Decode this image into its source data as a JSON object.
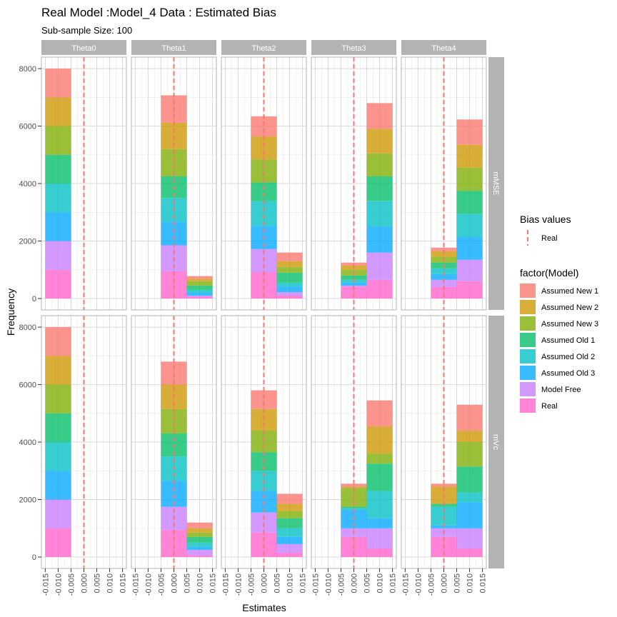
{
  "chart_data": {
    "type": "bar",
    "title": "Real Model :Model_4 Data : Estimated Bias",
    "subtitle": "Sub-sample Size: 100",
    "xlabel": "Estimates",
    "ylabel": "Frequency",
    "x_ticks": [
      "-0.015",
      "-0.010",
      "-0.005",
      "0.000",
      "0.005",
      "0.010",
      "0.015"
    ],
    "y_ticks": [
      "0",
      "2000",
      "4000",
      "6000",
      "8000"
    ],
    "ylim": [
      0,
      8400
    ],
    "grid": true,
    "stacked": true,
    "facet_columns": [
      "Theta0",
      "Theta1",
      "Theta2",
      "Theta3",
      "Theta4"
    ],
    "facet_rows": [
      "mMSE",
      "mVc"
    ],
    "reference_line": {
      "label": "Real",
      "value": 0.0,
      "color": "#f8766d"
    },
    "legend_bias": {
      "title": "Bias values",
      "entry": "Real"
    },
    "legend_model": {
      "title": "factor(Model)",
      "entries": [
        "Assumed New 1",
        "Assumed New 2",
        "Assumed New 3",
        "Assumed Old 1",
        "Assumed Old 2",
        "Assumed Old 3",
        "Model Free",
        "Real"
      ]
    },
    "colors": [
      "#f8766d",
      "#cd9600",
      "#7cae00",
      "#00be67",
      "#00bfc4",
      "#00a9ff",
      "#c77cff",
      "#ff61cc"
    ],
    "panels": [
      {
        "row": "mMSE",
        "col": "Theta0",
        "bars": [
          {
            "x0": -0.015,
            "x1": -0.005,
            "stack": [
              1000,
              1000,
              1000,
              1000,
              1000,
              1000,
              1000,
              1000
            ]
          }
        ]
      },
      {
        "row": "mMSE",
        "col": "Theta1",
        "bars": [
          {
            "x0": -0.005,
            "x1": 0.005,
            "stack": [
              950,
              920,
              950,
              750,
              830,
              820,
              900,
              950
            ]
          },
          {
            "x0": 0.005,
            "x1": 0.015,
            "stack": [
              100,
              80,
              150,
              150,
              100,
              100,
              50,
              50
            ]
          }
        ]
      },
      {
        "row": "mMSE",
        "col": "Theta2",
        "bars": [
          {
            "x0": -0.005,
            "x1": 0.005,
            "stack": [
              700,
              800,
              800,
              650,
              870,
              800,
              800,
              920
            ]
          },
          {
            "x0": 0.005,
            "x1": 0.015,
            "stack": [
              300,
              200,
              200,
              350,
              130,
              200,
              120,
              100
            ]
          }
        ]
      },
      {
        "row": "mMSE",
        "col": "Theta3",
        "bars": [
          {
            "x0": -0.005,
            "x1": 0.005,
            "stack": [
              100,
              150,
              200,
              150,
              100,
              100,
              50,
              400
            ]
          },
          {
            "x0": 0.005,
            "x1": 0.015,
            "stack": [
              900,
              850,
              800,
              850,
              900,
              900,
              950,
              650
            ]
          }
        ]
      },
      {
        "row": "mMSE",
        "col": "Theta4",
        "bars": [
          {
            "x0": -0.005,
            "x1": 0.005,
            "stack": [
              120,
              200,
              200,
              200,
              200,
              200,
              250,
              400
            ]
          },
          {
            "x0": 0.005,
            "x1": 0.015,
            "stack": [
              880,
              800,
              800,
              800,
              800,
              800,
              750,
              600
            ]
          }
        ]
      },
      {
        "row": "mVc",
        "col": "Theta0",
        "bars": [
          {
            "x0": -0.015,
            "x1": -0.005,
            "stack": [
              1000,
              1000,
              1000,
              1000,
              1000,
              1000,
              1000,
              1000
            ]
          }
        ]
      },
      {
        "row": "mVc",
        "col": "Theta1",
        "bars": [
          {
            "x0": -0.005,
            "x1": 0.005,
            "stack": [
              800,
              850,
              850,
              800,
              850,
              900,
              800,
              950
            ]
          },
          {
            "x0": 0.005,
            "x1": 0.015,
            "stack": [
              200,
              150,
              150,
              200,
              150,
              100,
              200,
              50
            ]
          }
        ]
      },
      {
        "row": "mVc",
        "col": "Theta2",
        "bars": [
          {
            "x0": -0.005,
            "x1": 0.005,
            "stack": [
              650,
              750,
              750,
              650,
              700,
              750,
              700,
              850
            ]
          },
          {
            "x0": 0.005,
            "x1": 0.015,
            "stack": [
              350,
              250,
              250,
              350,
              300,
              250,
              300,
              150
            ]
          }
        ]
      },
      {
        "row": "mVc",
        "col": "Theta3",
        "bars": [
          {
            "x0": -0.005,
            "x1": 0.005,
            "stack": [
              100,
              50,
              650,
              50,
              50,
              650,
              300,
              700
            ]
          },
          {
            "x0": 0.005,
            "x1": 0.015,
            "stack": [
              900,
              950,
              350,
              950,
              950,
              350,
              700,
              300
            ]
          }
        ]
      },
      {
        "row": "mVc",
        "col": "Theta4",
        "bars": [
          {
            "x0": -0.005,
            "x1": 0.005,
            "stack": [
              100,
              600,
              0,
              100,
              650,
              100,
              300,
              700
            ]
          },
          {
            "x0": 0.005,
            "x1": 0.015,
            "stack": [
              900,
              400,
              850,
              900,
              350,
              900,
              700,
              300
            ]
          }
        ]
      }
    ]
  }
}
